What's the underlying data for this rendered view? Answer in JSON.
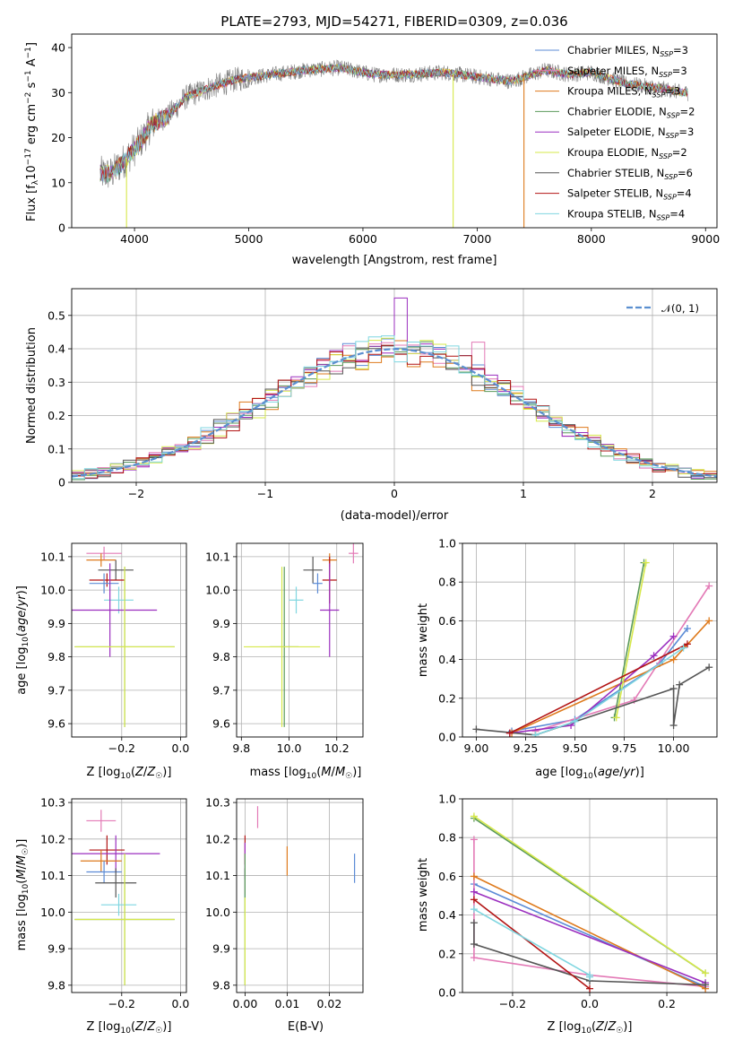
{
  "colors": {
    "chabrier_miles": "#5b8bd6",
    "salpeter_miles": "#e37ab6",
    "kroupa_miles": "#de7a1c",
    "chabrier_elodie": "#5b9a5b",
    "salpeter_elodie": "#9b2fbf",
    "kroupa_elodie": "#d6e84a",
    "chabrier_stelib": "#555555",
    "salpeter_stelib": "#b21414",
    "kroupa_stelib": "#7fd6e0",
    "gaussian": "#5b8fd0"
  },
  "chart_data": [
    {
      "id": "spectrum",
      "type": "line",
      "title": "PLATE=2793, MJD=54271, FIBERID=0309, z=0.036",
      "xlabel": "wavelength [Angstrom, rest frame]",
      "ylabel": "Flux [f_λ10^-17 erg cm^-2 s^-1 A^-1]",
      "xlim": [
        3450,
        9100
      ],
      "ylim": [
        0,
        43
      ],
      "xticks": [
        4000,
        5000,
        6000,
        7000,
        8000,
        9000
      ],
      "yticks": [
        0,
        10,
        20,
        30,
        40
      ],
      "grid": false,
      "legend_position": "top-right",
      "legend": [
        {
          "label": "Chabrier MILES, N",
          "sub": "SSP",
          "tail": "=3",
          "color_key": "chabrier_miles"
        },
        {
          "label": "Salpeter MILES, N",
          "sub": "SSP",
          "tail": "=3",
          "color_key": "salpeter_miles"
        },
        {
          "label": "Kroupa MILES, N",
          "sub": "SSP",
          "tail": "=3",
          "color_key": "kroupa_miles"
        },
        {
          "label": "Chabrier ELODIE, N",
          "sub": "SSP",
          "tail": "=2",
          "color_key": "chabrier_elodie"
        },
        {
          "label": "Salpeter ELODIE, N",
          "sub": "SSP",
          "tail": "=3",
          "color_key": "salpeter_elodie"
        },
        {
          "label": "Kroupa ELODIE, N",
          "sub": "SSP",
          "tail": "=2",
          "color_key": "kroupa_elodie"
        },
        {
          "label": "Chabrier STELIB, N",
          "sub": "SSP",
          "tail": "=6",
          "color_key": "chabrier_stelib"
        },
        {
          "label": "Salpeter STELIB, N",
          "sub": "SSP",
          "tail": "=4",
          "color_key": "salpeter_stelib"
        },
        {
          "label": "Kroupa STELIB, N",
          "sub": "SSP",
          "tail": "=4",
          "color_key": "kroupa_stelib"
        }
      ],
      "continuum": [
        [
          3700,
          12
        ],
        [
          3800,
          12
        ],
        [
          3950,
          16
        ],
        [
          4050,
          19
        ],
        [
          4150,
          23
        ],
        [
          4300,
          25
        ],
        [
          4450,
          29
        ],
        [
          4650,
          31
        ],
        [
          4900,
          33
        ],
        [
          5200,
          34
        ],
        [
          5500,
          35
        ],
        [
          5800,
          35.5
        ],
        [
          6100,
          34
        ],
        [
          6400,
          34
        ],
        [
          6700,
          34.5
        ],
        [
          7000,
          33.5
        ],
        [
          7300,
          32.5
        ],
        [
          7600,
          35
        ],
        [
          7800,
          34
        ],
        [
          8000,
          34.5
        ],
        [
          8300,
          32
        ],
        [
          8600,
          31
        ],
        [
          8800,
          30
        ]
      ],
      "dropouts": [
        {
          "x": 3930,
          "color_key": "kroupa_elodie"
        },
        {
          "x": 6790,
          "color_key": "kroupa_elodie"
        },
        {
          "x": 7410,
          "color_key": "kroupa_miles"
        }
      ]
    },
    {
      "id": "residuals",
      "type": "histogram",
      "xlabel": "(data-model)/error",
      "ylabel": "Normed distribution",
      "xlim": [
        -2.5,
        2.5
      ],
      "ylim": [
        0,
        0.58
      ],
      "xticks": [
        -2,
        -1,
        0,
        1,
        2
      ],
      "yticks": [
        0.0,
        0.1,
        0.2,
        0.3,
        0.4,
        0.5
      ],
      "grid": true,
      "legend_position": "top-right",
      "legend": [
        {
          "label": "𝒩(0, 1)",
          "color_key": "gaussian"
        }
      ],
      "bin_width": 0.1
    },
    {
      "id": "z-age",
      "type": "scatter",
      "xlabel": "Z [log₁₀(Z/Z☉)]",
      "ylabel": "age [log₁₀(age/yr)]",
      "xlim": [
        -0.37,
        0.02
      ],
      "ylim": [
        9.56,
        10.14
      ],
      "xticks": [
        -0.2,
        0.0
      ],
      "yticks": [
        9.6,
        9.7,
        9.8,
        9.9,
        10.0,
        10.1
      ],
      "grid": true,
      "points": [
        {
          "x": -0.26,
          "y": 10.11,
          "xerr": 0.06,
          "yerr": 0.02,
          "color_key": "salpeter_miles"
        },
        {
          "x": -0.27,
          "y": 10.09,
          "xerr": 0.05,
          "yerr": 0.02,
          "color_key": "kroupa_miles"
        },
        {
          "x": -0.22,
          "y": 10.06,
          "xerr": 0.06,
          "yerr": 0.03,
          "color_key": "chabrier_stelib"
        },
        {
          "x": -0.25,
          "y": 10.03,
          "xerr": 0.06,
          "yerr": 0.02,
          "color_key": "salpeter_stelib"
        },
        {
          "x": -0.26,
          "y": 10.02,
          "xerr": 0.05,
          "yerr": 0.03,
          "color_key": "chabrier_miles"
        },
        {
          "x": -0.21,
          "y": 9.97,
          "xerr": 0.05,
          "yerr": 0.04,
          "color_key": "kroupa_stelib"
        },
        {
          "x": -0.24,
          "y": 9.94,
          "xerr": 0.16,
          "yerr": 0.14,
          "color_key": "salpeter_elodie"
        },
        {
          "x": -0.19,
          "y": 9.83,
          "xerr": 0.17,
          "yerr": 0.24,
          "color_key": "chabrier_elodie"
        },
        {
          "x": -0.19,
          "y": 9.83,
          "xerr": 0.17,
          "yerr": 0.24,
          "color_key": "kroupa_elodie"
        }
      ]
    },
    {
      "id": "mass-age",
      "type": "scatter",
      "xlabel": "mass [log₁₀(M/M☉)]",
      "ylabel": "",
      "xlim": [
        9.78,
        10.31
      ],
      "ylim": [
        9.56,
        10.14
      ],
      "xticks": [
        9.8,
        10.0,
        10.2
      ],
      "yticks": [
        9.6,
        9.7,
        9.8,
        9.9,
        10.0,
        10.1
      ],
      "grid": true,
      "points": [
        {
          "x": 10.27,
          "y": 10.11,
          "xerr": 0.02,
          "yerr": 0.03,
          "color_key": "salpeter_miles"
        },
        {
          "x": 10.17,
          "y": 10.09,
          "xerr": 0.03,
          "yerr": 0.02,
          "color_key": "kroupa_miles"
        },
        {
          "x": 10.1,
          "y": 10.06,
          "xerr": 0.04,
          "yerr": 0.04,
          "color_key": "chabrier_stelib"
        },
        {
          "x": 10.17,
          "y": 10.03,
          "xerr": 0.03,
          "yerr": 0.07,
          "color_key": "salpeter_stelib"
        },
        {
          "x": 10.12,
          "y": 10.02,
          "xerr": 0.02,
          "yerr": 0.03,
          "color_key": "chabrier_miles"
        },
        {
          "x": 10.03,
          "y": 9.97,
          "xerr": 0.03,
          "yerr": 0.04,
          "color_key": "kroupa_stelib"
        },
        {
          "x": 10.17,
          "y": 9.94,
          "xerr": 0.04,
          "yerr": 0.14,
          "color_key": "salpeter_elodie"
        },
        {
          "x": 9.98,
          "y": 9.83,
          "xerr": 0.06,
          "yerr": 0.24,
          "color_key": "chabrier_elodie"
        },
        {
          "x": 9.97,
          "y": 9.83,
          "xerr": 0.16,
          "yerr": 0.24,
          "color_key": "kroupa_elodie"
        }
      ]
    },
    {
      "id": "age-weight",
      "type": "line",
      "xlabel": "age [log₁₀(age/yr)]",
      "ylabel": "mass weight",
      "xlim": [
        8.93,
        10.22
      ],
      "ylim": [
        0,
        1.0
      ],
      "xticks": [
        9.0,
        9.25,
        9.5,
        9.75,
        10.0
      ],
      "ytick_labels": [
        "0.0",
        "0.2",
        "0.4",
        "0.6",
        "0.8",
        "1.0"
      ],
      "yticks": [
        0.0,
        0.2,
        0.4,
        0.6,
        0.8,
        1.0
      ],
      "grid": true,
      "series": [
        {
          "color_key": "chabrier_miles",
          "x": [
            9.18,
            9.5,
            9.93,
            10.07
          ],
          "y": [
            0.03,
            0.09,
            0.38,
            0.56
          ]
        },
        {
          "color_key": "salpeter_miles",
          "x": [
            9.3,
            9.8,
            10.18
          ],
          "y": [
            0.03,
            0.19,
            0.78
          ]
        },
        {
          "color_key": "kroupa_miles",
          "x": [
            9.18,
            10.0,
            10.18
          ],
          "y": [
            0.02,
            0.4,
            0.6
          ]
        },
        {
          "color_key": "chabrier_elodie",
          "x": [
            9.7,
            9.85
          ],
          "y": [
            0.1,
            0.9
          ]
        },
        {
          "color_key": "salpeter_elodie",
          "x": [
            9.17,
            9.48,
            9.9,
            10.0
          ],
          "y": [
            0.02,
            0.06,
            0.42,
            0.52
          ]
        },
        {
          "color_key": "kroupa_elodie",
          "x": [
            9.71,
            9.86
          ],
          "y": [
            0.1,
            0.9
          ]
        },
        {
          "color_key": "chabrier_stelib",
          "x": [
            9.0,
            9.3,
            10.0,
            10.0,
            10.03,
            10.18
          ],
          "y": [
            0.04,
            0.01,
            0.25,
            0.06,
            0.27,
            0.36
          ]
        },
        {
          "color_key": "salpeter_stelib",
          "x": [
            9.17,
            10.07
          ],
          "y": [
            0.02,
            0.48
          ]
        },
        {
          "color_key": "kroupa_stelib",
          "x": [
            9.3,
            9.5,
            10.05
          ],
          "y": [
            0.01,
            0.08,
            0.46
          ]
        }
      ]
    },
    {
      "id": "z-mass",
      "type": "scatter",
      "xlabel": "Z [log₁₀(Z/Z☉)]",
      "ylabel": "mass [log₁₀(M/M☉)]",
      "xlim": [
        -0.37,
        0.02
      ],
      "ylim": [
        9.78,
        10.31
      ],
      "xticks": [
        -0.2,
        0.0
      ],
      "yticks": [
        9.8,
        9.9,
        10.0,
        10.1,
        10.2,
        10.3
      ],
      "grid": true,
      "points": [
        {
          "x": -0.27,
          "y": 10.25,
          "xerr": 0.05,
          "yerr": 0.03,
          "color_key": "salpeter_miles"
        },
        {
          "x": -0.25,
          "y": 10.17,
          "xerr": 0.06,
          "yerr": 0.04,
          "color_key": "salpeter_stelib"
        },
        {
          "x": -0.22,
          "y": 10.16,
          "xerr": 0.15,
          "yerr": 0.05,
          "color_key": "salpeter_elodie"
        },
        {
          "x": -0.27,
          "y": 10.14,
          "xerr": 0.07,
          "yerr": 0.03,
          "color_key": "kroupa_miles"
        },
        {
          "x": -0.26,
          "y": 10.11,
          "xerr": 0.06,
          "yerr": 0.03,
          "color_key": "chabrier_miles"
        },
        {
          "x": -0.22,
          "y": 10.08,
          "xerr": 0.07,
          "yerr": 0.04,
          "color_key": "chabrier_stelib"
        },
        {
          "x": -0.21,
          "y": 10.02,
          "xerr": 0.06,
          "yerr": 0.03,
          "color_key": "kroupa_stelib"
        },
        {
          "x": -0.19,
          "y": 9.98,
          "xerr": 0.17,
          "yerr": 0.18,
          "color_key": "chabrier_elodie"
        },
        {
          "x": -0.19,
          "y": 9.98,
          "xerr": 0.17,
          "yerr": 0.18,
          "color_key": "kroupa_elodie"
        }
      ]
    },
    {
      "id": "ebv-mass",
      "type": "scatter",
      "xlabel": "E(B-V)",
      "ylabel": "",
      "xlim": [
        -0.002,
        0.028
      ],
      "ylim": [
        9.78,
        10.31
      ],
      "xticks": [
        0.0,
        0.01,
        0.02
      ],
      "yticks": [
        9.8,
        9.9,
        10.0,
        10.1,
        10.2,
        10.3
      ],
      "grid": true,
      "points": [
        {
          "x": 0.003,
          "y": 10.26,
          "xerr": 0,
          "yerr": 0.03,
          "color_key": "salpeter_miles"
        },
        {
          "x": 0.0,
          "y": 10.17,
          "xerr": 0,
          "yerr": 0.04,
          "color_key": "salpeter_stelib"
        },
        {
          "x": 0.0,
          "y": 10.14,
          "xerr": 0,
          "yerr": 0.05,
          "color_key": "salpeter_elodie"
        },
        {
          "x": 0.01,
          "y": 10.14,
          "xerr": 0,
          "yerr": 0.04,
          "color_key": "kroupa_miles"
        },
        {
          "x": 0.026,
          "y": 10.12,
          "xerr": 0,
          "yerr": 0.04,
          "color_key": "chabrier_miles"
        },
        {
          "x": 0.0,
          "y": 10.08,
          "xerr": 0,
          "yerr": 0.04,
          "color_key": "chabrier_stelib"
        },
        {
          "x": 0.0,
          "y": 10.02,
          "xerr": 0,
          "yerr": 0.03,
          "color_key": "kroupa_stelib"
        },
        {
          "x": 0.0,
          "y": 9.98,
          "xerr": 0,
          "yerr": 0.18,
          "color_key": "chabrier_elodie"
        },
        {
          "x": 0.0,
          "y": 9.92,
          "xerr": 0,
          "yerr": 0.12,
          "color_key": "kroupa_elodie"
        }
      ]
    },
    {
      "id": "z-weight",
      "type": "line",
      "xlabel": "Z [log₁₀(Z/Z☉)]",
      "ylabel": "mass weight",
      "xlim": [
        -0.33,
        0.33
      ],
      "ylim": [
        0,
        1.0
      ],
      "xticks": [
        -0.2,
        0.0,
        0.2
      ],
      "ytick_labels": [
        "0.0",
        "0.2",
        "0.4",
        "0.6",
        "0.8",
        "1.0"
      ],
      "yticks": [
        0.0,
        0.2,
        0.4,
        0.6,
        0.8,
        1.0
      ],
      "grid": true,
      "series": [
        {
          "color_key": "chabrier_miles",
          "x": [
            -0.3,
            0.3
          ],
          "y": [
            0.56,
            0.03
          ]
        },
        {
          "color_key": "salpeter_miles",
          "x": [
            -0.3,
            -0.3,
            0.0,
            0.3
          ],
          "y": [
            0.79,
            0.18,
            0.09,
            0.03
          ]
        },
        {
          "color_key": "kroupa_miles",
          "x": [
            -0.3,
            0.3
          ],
          "y": [
            0.6,
            0.02
          ]
        },
        {
          "color_key": "chabrier_elodie",
          "x": [
            -0.3,
            0.3
          ],
          "y": [
            0.9,
            0.1
          ]
        },
        {
          "color_key": "salpeter_elodie",
          "x": [
            -0.3,
            0.3
          ],
          "y": [
            0.52,
            0.05
          ]
        },
        {
          "color_key": "kroupa_elodie",
          "x": [
            -0.3,
            0.3
          ],
          "y": [
            0.91,
            0.1
          ]
        },
        {
          "color_key": "chabrier_stelib",
          "x": [
            -0.3,
            -0.3,
            0.0,
            0.3
          ],
          "y": [
            0.36,
            0.25,
            0.06,
            0.04
          ]
        },
        {
          "color_key": "salpeter_stelib",
          "x": [
            -0.3,
            0.0
          ],
          "y": [
            0.48,
            0.02
          ]
        },
        {
          "color_key": "kroupa_stelib",
          "x": [
            -0.3,
            0.0,
            0.0
          ],
          "y": [
            0.43,
            0.09,
            0.08
          ]
        }
      ]
    }
  ]
}
